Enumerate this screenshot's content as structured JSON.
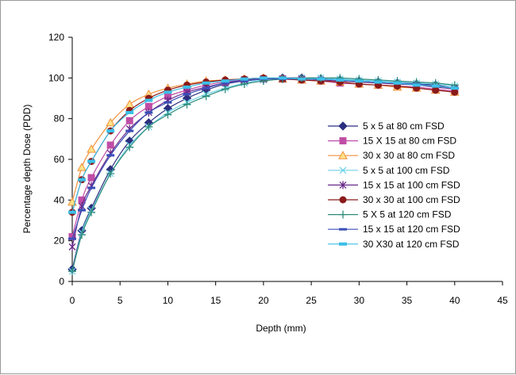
{
  "chart_data": {
    "type": "line",
    "title": "",
    "xlabel": "Depth (mm)",
    "ylabel": "Percentage depth Dose (PDD)",
    "xlim": [
      0,
      45
    ],
    "ylim": [
      0,
      120
    ],
    "xticks": [
      0,
      5,
      10,
      15,
      20,
      25,
      30,
      35,
      40,
      45
    ],
    "yticks": [
      0,
      20,
      40,
      60,
      80,
      100,
      120
    ],
    "grid": false,
    "legend_position": "right",
    "x": [
      0,
      1,
      2,
      4,
      6,
      8,
      10,
      12,
      14,
      16,
      18,
      20,
      22,
      24,
      26,
      28,
      30,
      32,
      34,
      36,
      38,
      40
    ],
    "series": [
      {
        "name": "5 x 5 at 80 cm FSD",
        "color": "#2b2f7f",
        "marker": "diamond",
        "values": [
          6,
          25,
          36,
          55,
          69,
          78,
          85,
          90,
          94,
          97,
          98.5,
          99.5,
          100,
          100,
          99.5,
          99,
          98.5,
          98,
          97.5,
          97,
          96.5,
          95
        ]
      },
      {
        "name": "15 X 15 at 80 cm FSD",
        "color": "#c04da6",
        "marker": "square",
        "values": [
          22,
          40,
          51,
          67,
          79,
          86,
          91,
          94,
          96.5,
          98,
          99,
          99.5,
          99.5,
          99,
          98.5,
          97.5,
          97,
          96.5,
          96,
          95.5,
          94.5,
          93.5
        ]
      },
      {
        "name": "30 x 30 at 80 cm FSD",
        "color": "#f2903a",
        "fill": "#fbe38a",
        "marker": "triangle",
        "values": [
          39,
          56,
          65,
          78,
          87,
          92,
          95,
          97,
          98.5,
          99,
          99.5,
          100,
          99.5,
          99,
          98.5,
          98,
          97,
          96.5,
          95.5,
          95,
          94,
          93
        ]
      },
      {
        "name": "5 x 5 at 100 cm FSD",
        "color": "#6fd3e8",
        "marker": "x",
        "values": [
          5,
          24,
          35,
          53,
          67,
          76,
          83,
          88,
          92,
          95,
          97.5,
          99,
          99.5,
          100,
          100,
          99.5,
          99,
          98.5,
          98,
          97.5,
          97,
          96
        ]
      },
      {
        "name": "15 x 15 at 100 cm FSD",
        "color": "#6a2a8a",
        "marker": "star",
        "values": [
          17,
          37,
          47,
          63,
          75,
          83,
          89,
          93,
          95.5,
          97.5,
          99,
          99.5,
          99.5,
          99.5,
          99,
          98.5,
          98,
          97.5,
          97,
          96.5,
          95.5,
          94.5
        ]
      },
      {
        "name": "30 x 30 at 100 cm FSD",
        "color": "#8b1a1a",
        "marker": "circle",
        "values": [
          34,
          50,
          59,
          74,
          84,
          90,
          94,
          96.5,
          98,
          99,
          99.5,
          100,
          99.5,
          99,
          98.5,
          98,
          97,
          96.5,
          96,
          95,
          94,
          93
        ]
      },
      {
        "name": "5 X 5 at 120 cm FSD",
        "color": "#2e8b7a",
        "marker": "plus",
        "values": [
          5,
          23,
          34,
          53,
          66,
          76,
          82,
          87,
          91,
          94.5,
          97,
          98.5,
          99.5,
          100,
          100,
          100,
          99.5,
          99,
          98.5,
          98,
          97.5,
          96.5
        ]
      },
      {
        "name": "15 x 15 at 120 cm FSD",
        "color": "#3b4fb8",
        "marker": "dash",
        "values": [
          21,
          35,
          46,
          62,
          74,
          83,
          88,
          92,
          95,
          97.5,
          98.5,
          99.5,
          99.5,
          99.5,
          99.5,
          99,
          98.5,
          98,
          97.5,
          97,
          96,
          95
        ]
      },
      {
        "name": "30 X30 at 120 cm FSD",
        "color": "#3bbfe8",
        "marker": "bar",
        "values": [
          34,
          50,
          59,
          74,
          83,
          89,
          93,
          95.5,
          97.5,
          98.5,
          99.5,
          100,
          100,
          99.5,
          99.5,
          99,
          98.5,
          98,
          97.5,
          96.5,
          96,
          95
        ]
      }
    ]
  }
}
